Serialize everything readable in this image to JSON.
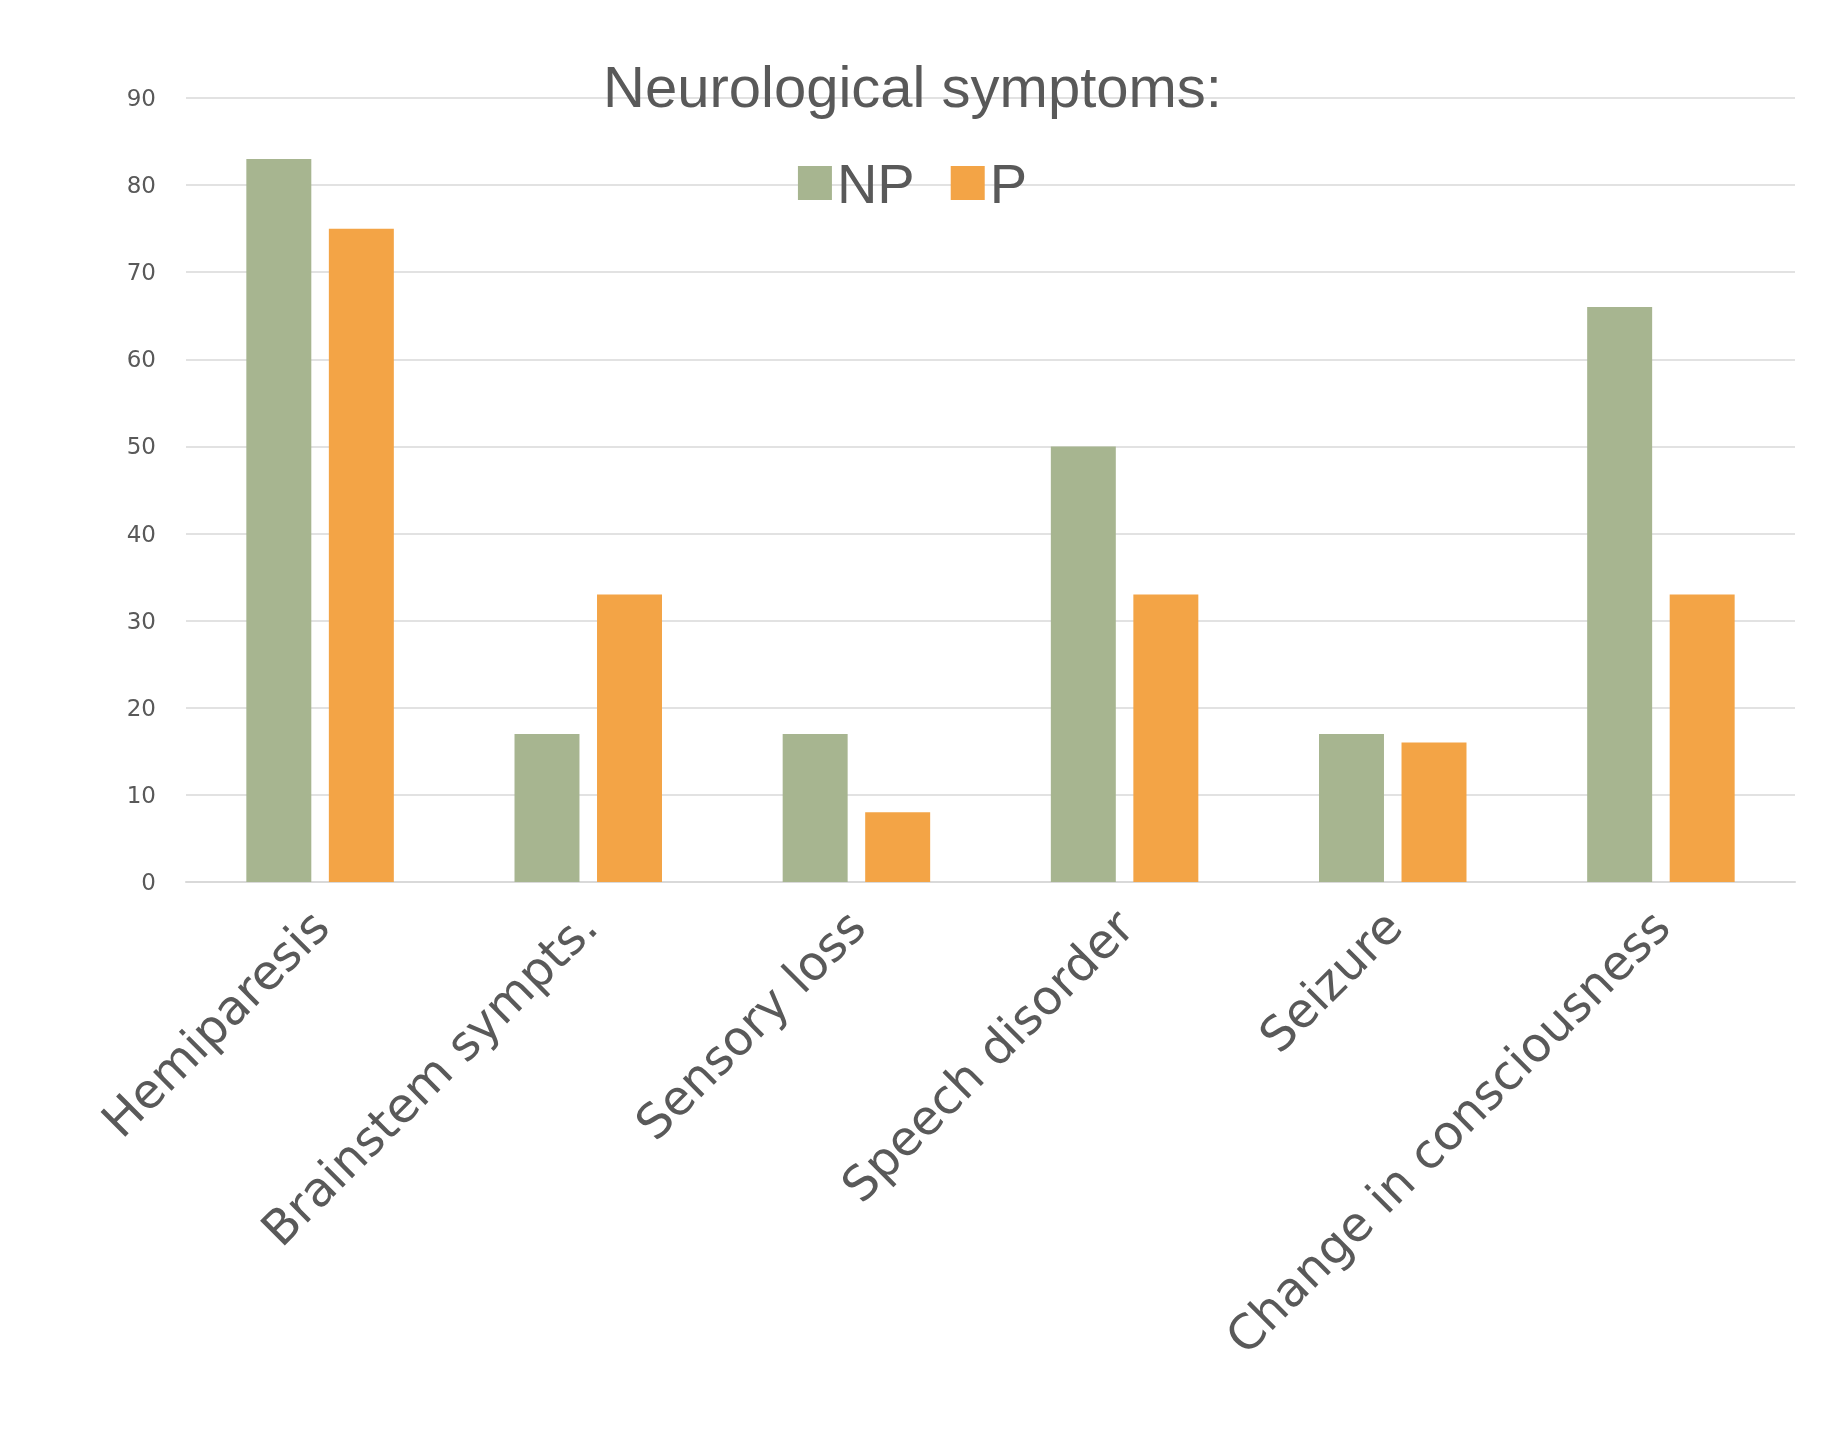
{
  "chart_data": {
    "type": "bar",
    "title": "Neurological symptoms:",
    "categories": [
      "Hemiparesis",
      "Brainstem sympts.",
      "Sensory loss",
      "Speech disorder",
      "Seizure",
      "Change in consciousness"
    ],
    "series": [
      {
        "name": "NP",
        "color": "#a7b590",
        "values": [
          83,
          17,
          17,
          50,
          17,
          66
        ]
      },
      {
        "name": "P",
        "color": "#f3a446",
        "values": [
          75,
          33,
          8,
          33,
          16,
          33
        ]
      }
    ],
    "ylim": [
      0,
      90
    ],
    "yticks": [
      0,
      10,
      20,
      30,
      40,
      50,
      60,
      70,
      80,
      90
    ],
    "grid": "y",
    "legend": "top"
  }
}
